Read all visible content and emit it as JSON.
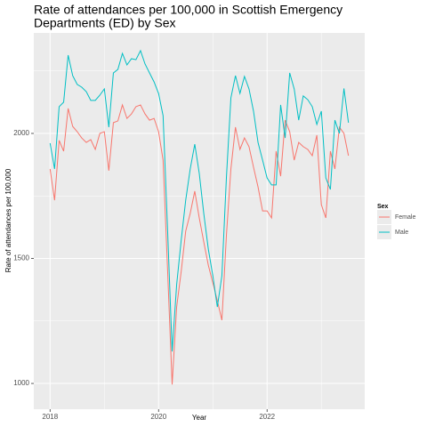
{
  "chart_data": {
    "type": "line",
    "title": [
      "Rate of attendances per 100,000 in Scottish Emergency",
      "Departments (ED) by Sex"
    ],
    "x_label": "Year",
    "y_label": "Rate of attendances per 100,000",
    "legend_title": "Sex",
    "legend": "right",
    "grid": true,
    "xlim": [
      2017.7,
      2023.8
    ],
    "xticks": [
      2018,
      2020,
      2022
    ],
    "xminor": [
      2019,
      2021,
      2023
    ],
    "ylim": [
      897,
      2402
    ],
    "yticks": [
      1000,
      1500,
      2000
    ],
    "yminor": [
      1250,
      1750,
      2250
    ],
    "x": [
      2018,
      2018.083,
      2018.167,
      2018.25,
      2018.333,
      2018.417,
      2018.5,
      2018.583,
      2018.667,
      2018.75,
      2018.833,
      2018.917,
      2019,
      2019.083,
      2019.167,
      2019.25,
      2019.333,
      2019.417,
      2019.5,
      2019.583,
      2019.667,
      2019.75,
      2019.833,
      2019.917,
      2020,
      2020.083,
      2020.167,
      2020.25,
      2020.333,
      2020.417,
      2020.5,
      2020.583,
      2020.667,
      2020.75,
      2020.833,
      2020.917,
      2021,
      2021.083,
      2021.167,
      2021.25,
      2021.333,
      2021.417,
      2021.5,
      2021.583,
      2021.667,
      2021.75,
      2021.833,
      2021.917,
      2022,
      2022.083,
      2022.167,
      2022.25,
      2022.333,
      2022.417,
      2022.5,
      2022.583,
      2022.667,
      2022.75,
      2022.833,
      2022.917,
      2023,
      2023.083,
      2023.167,
      2023.25,
      2023.333,
      2023.417,
      2023.5
    ],
    "series": [
      {
        "name": "Female",
        "color": "#F8766D",
        "values": [
          1858,
          1733,
          1972,
          1929,
          2100,
          2028,
          2007,
          1982,
          1964,
          1975,
          1936,
          2000,
          2007,
          1851,
          2043,
          2050,
          2114,
          2060,
          2078,
          2107,
          2114,
          2078,
          2053,
          2060,
          2007,
          1893,
          1448,
          996,
          1306,
          1448,
          1609,
          1680,
          1769,
          1662,
          1566,
          1473,
          1402,
          1331,
          1253,
          1591,
          1858,
          2025,
          1936,
          1982,
          1947,
          1865,
          1786,
          1690,
          1690,
          1662,
          1929,
          1829,
          2053,
          2007,
          1893,
          1964,
          1947,
          1936,
          1911,
          1993,
          1715,
          1662,
          1929,
          1858,
          2025,
          2000,
          1911
        ]
      },
      {
        "name": "Male",
        "color": "#00BFC4",
        "values": [
          1961,
          1858,
          2107,
          2125,
          2313,
          2231,
          2196,
          2185,
          2167,
          2132,
          2132,
          2153,
          2178,
          2025,
          2242,
          2256,
          2320,
          2274,
          2299,
          2295,
          2331,
          2278,
          2242,
          2206,
          2160,
          2071,
          1609,
          1128,
          1395,
          1573,
          1733,
          1858,
          1957,
          1840,
          1680,
          1537,
          1431,
          1306,
          1431,
          1822,
          2142,
          2231,
          2160,
          2228,
          2178,
          2089,
          1964,
          1893,
          1822,
          1794,
          1794,
          2114,
          1982,
          2242,
          2178,
          2053,
          2150,
          2135,
          2107,
          2036,
          2089,
          1822,
          1776,
          2053,
          2000,
          2180,
          2043
        ]
      }
    ]
  }
}
